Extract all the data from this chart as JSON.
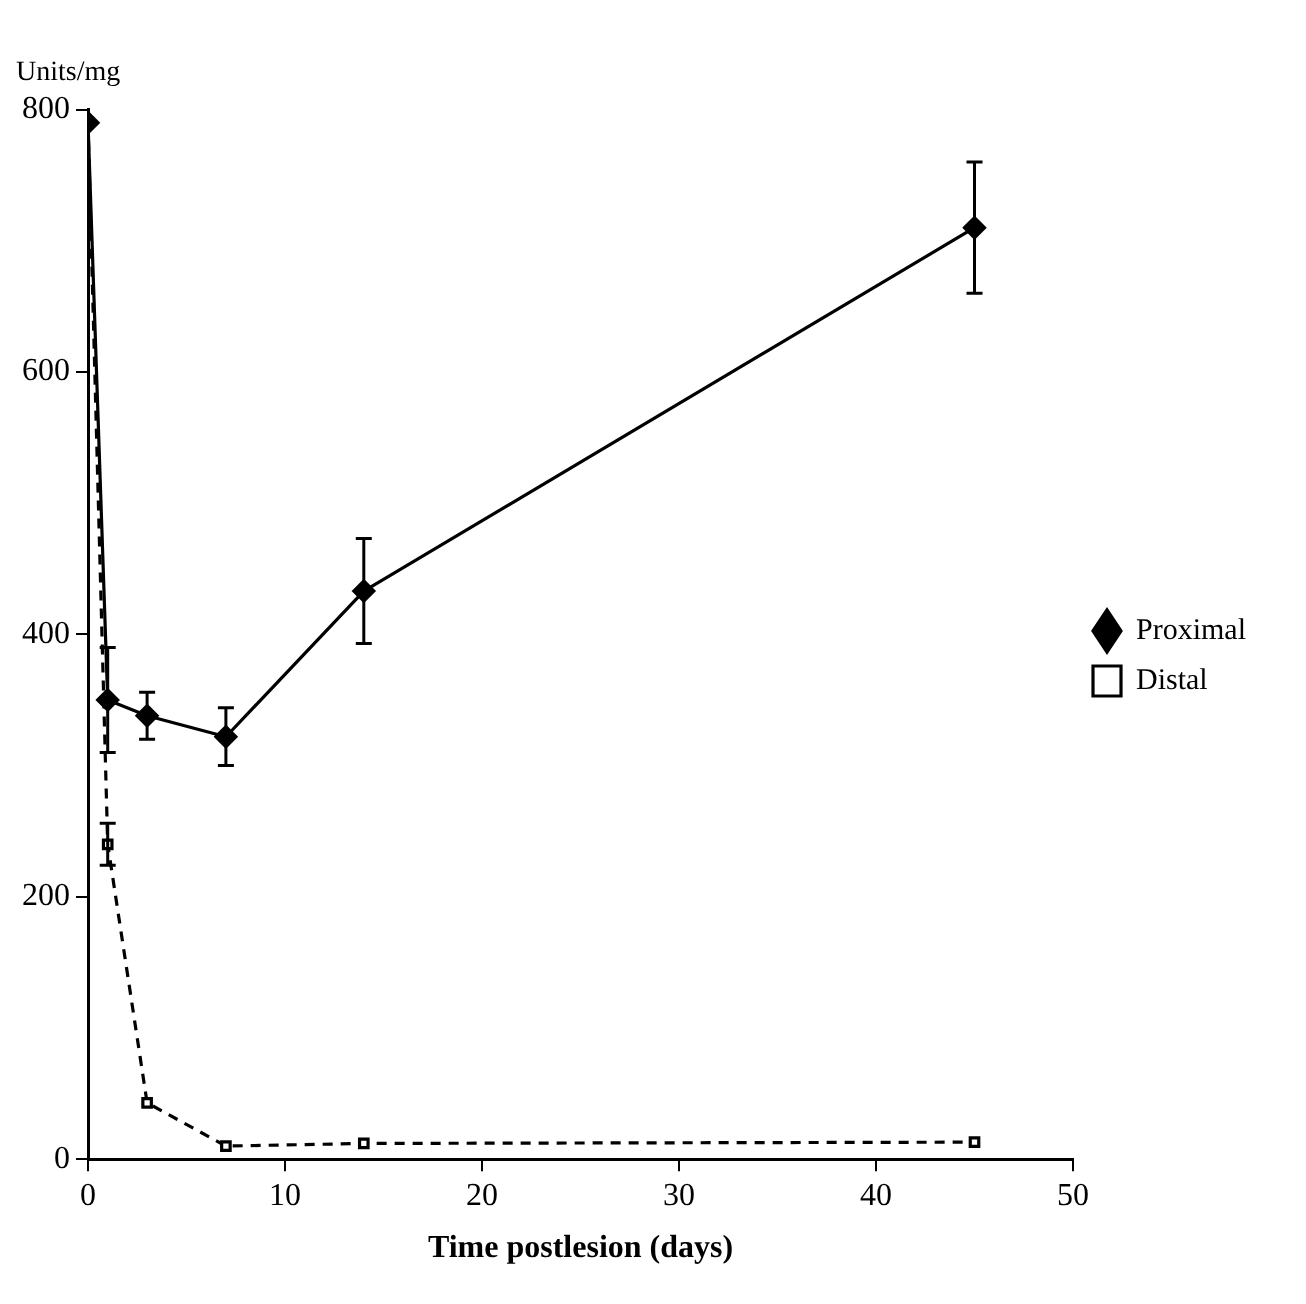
{
  "chart_data": {
    "type": "line",
    "ylabel": "Units/mg",
    "xlabel": "Time postlesion (days)",
    "x": [
      0,
      1,
      3,
      7,
      14,
      45
    ],
    "xlim": [
      0,
      50
    ],
    "xticks": [
      0,
      10,
      20,
      30,
      40,
      50
    ],
    "ylim": [
      0,
      800
    ],
    "yticks": [
      0,
      200,
      400,
      600,
      800
    ],
    "grid": false,
    "legend": "right",
    "series": [
      {
        "name": "Proximal",
        "color": "#000000",
        "marker": "diamond",
        "line_style": "solid",
        "values": [
          790,
          350,
          338,
          322,
          433,
          710
        ],
        "errors": [
          null,
          40,
          18,
          22,
          40,
          50
        ]
      },
      {
        "name": "Distal",
        "color": "#000000",
        "marker": "square",
        "line_style": "dashed",
        "values": [
          790,
          240,
          43,
          10,
          12,
          13
        ],
        "errors": [
          null,
          16,
          null,
          null,
          null,
          null
        ]
      }
    ]
  }
}
